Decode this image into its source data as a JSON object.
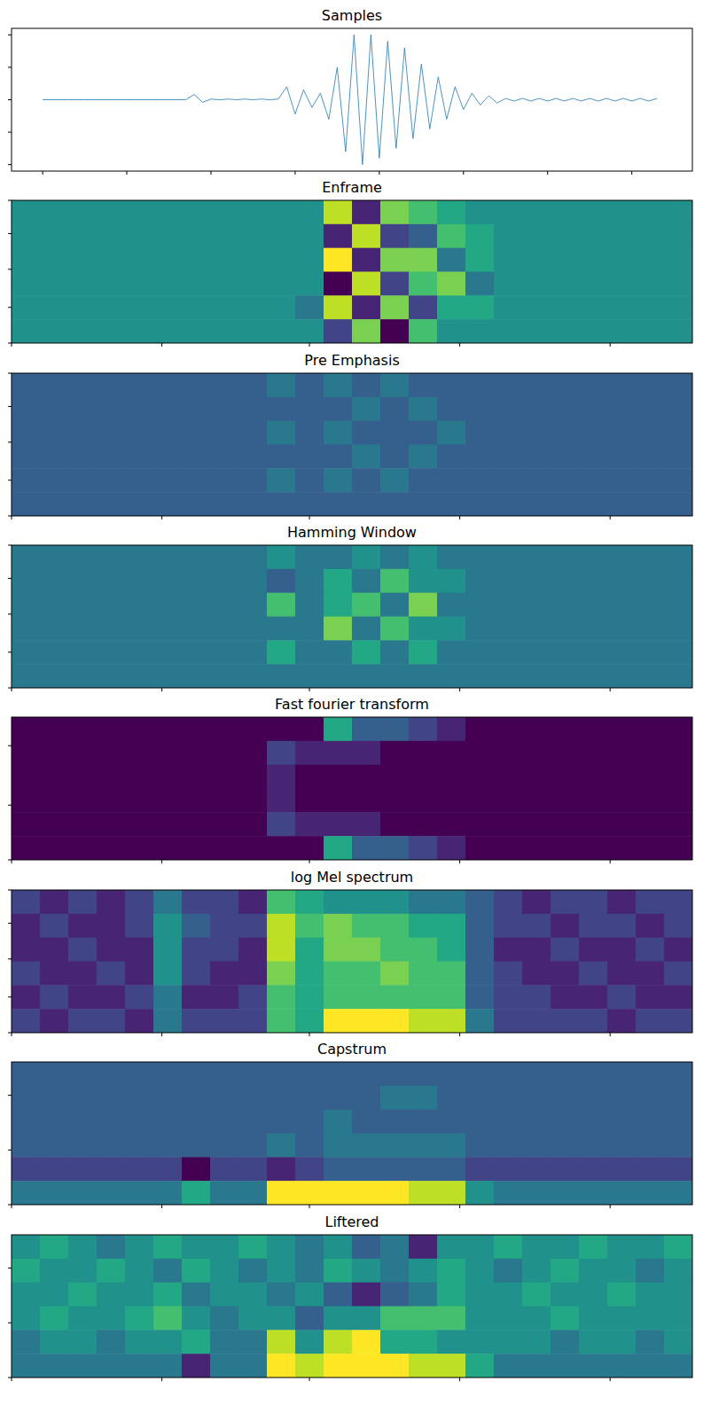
{
  "chart_data": [
    {
      "type": "line",
      "title": "Samples",
      "color": "#1f77b4",
      "tick_labels": false,
      "x": [
        0,
        0.1,
        0.2,
        0.3,
        0.4,
        0.5,
        0.6,
        0.7,
        0.8,
        0.9,
        1,
        1.1,
        1.2,
        1.3,
        1.4,
        1.5,
        1.6,
        1.7,
        1.8,
        1.9,
        2,
        2.1,
        2.2,
        2.3,
        2.4,
        2.5,
        2.6,
        2.7,
        2.8,
        2.9,
        3,
        3.1,
        3.2,
        3.3,
        3.4,
        3.5,
        3.6,
        3.7,
        3.8,
        3.9,
        4,
        4.1,
        4.2,
        4.3,
        4.4,
        4.5,
        4.6,
        4.7,
        4.8,
        4.9,
        5,
        5.1,
        5.2,
        5.3,
        5.4,
        5.5,
        5.6,
        5.7,
        5.8,
        5.9,
        6,
        6.1,
        6.2,
        6.3,
        6.4,
        6.5,
        6.6,
        6.7,
        6.8,
        6.9,
        7,
        7.1,
        7.2,
        7.3
      ],
      "values": [
        0,
        0,
        0,
        0,
        0,
        0,
        0,
        0,
        0,
        0,
        0,
        0,
        0,
        0,
        0,
        0,
        0,
        0,
        0.08,
        -0.04,
        0.01,
        0,
        0.01,
        0,
        0.01,
        0,
        0.01,
        0,
        0.01,
        0.2,
        -0.22,
        0.15,
        -0.12,
        0.1,
        -0.3,
        0.5,
        -0.8,
        1,
        -1,
        1,
        -0.9,
        0.9,
        -0.75,
        0.8,
        -0.6,
        0.55,
        -0.45,
        0.35,
        -0.3,
        0.2,
        -0.15,
        0.1,
        -0.08,
        0.06,
        -0.05,
        0.02,
        -0.02,
        0.02,
        -0.02,
        0.02,
        -0.02,
        0.02,
        -0.02,
        0.02,
        -0.02,
        0.02,
        -0.02,
        0.02,
        -0.02,
        0.02,
        -0.02,
        0.02,
        -0.02,
        0.02
      ],
      "xlim": [
        -0.37,
        7.72
      ],
      "ylim": [
        -1.1,
        1.1
      ],
      "xticks": [
        0,
        1,
        2,
        3,
        4,
        5,
        6,
        7
      ],
      "yticks": [
        -1,
        -0.5,
        0,
        0.5,
        1
      ]
    },
    {
      "type": "heatmap",
      "title": "Enframe",
      "tick_labels": false,
      "xlim": [
        0,
        24
      ],
      "ylim": [
        0,
        6
      ],
      "xticks": [
        0,
        5.3,
        10.5,
        15.8,
        21.1
      ],
      "yticks": [
        0,
        1.4,
        2.9,
        4.5,
        6
      ],
      "color_range": [
        0,
        10
      ],
      "cells": [
        [
          5,
          5,
          5,
          5,
          5,
          5,
          5,
          5,
          5,
          5,
          5,
          9,
          1,
          8,
          7,
          6,
          5,
          5,
          5,
          5,
          5,
          5,
          5,
          5
        ],
        [
          5,
          5,
          5,
          5,
          5,
          5,
          5,
          5,
          5,
          5,
          5,
          1,
          9,
          2,
          3,
          7,
          6,
          5,
          5,
          5,
          5,
          5,
          5,
          5
        ],
        [
          5,
          5,
          5,
          5,
          5,
          5,
          5,
          5,
          5,
          5,
          5,
          10,
          1,
          8,
          8,
          4,
          6,
          5,
          5,
          5,
          5,
          5,
          5,
          5
        ],
        [
          5,
          5,
          5,
          5,
          5,
          5,
          5,
          5,
          5,
          5,
          5,
          0,
          9,
          2,
          7,
          8,
          4,
          5,
          5,
          5,
          5,
          5,
          5,
          5
        ],
        [
          5,
          5,
          5,
          5,
          5,
          5,
          5,
          5,
          5,
          5,
          4,
          9,
          1,
          8,
          2,
          6,
          6,
          5,
          5,
          5,
          5,
          5,
          5,
          5
        ],
        [
          5,
          5,
          5,
          5,
          5,
          5,
          5,
          5,
          5,
          5,
          5,
          2,
          8,
          0,
          7,
          5,
          5,
          5,
          5,
          5,
          5,
          5,
          5,
          5
        ]
      ]
    },
    {
      "type": "heatmap",
      "title": "Pre Emphasis",
      "tick_labels": false,
      "xlim": [
        0,
        24
      ],
      "ylim": [
        0,
        6
      ],
      "xticks": [
        0,
        5.3,
        10.5,
        15.8,
        21.1
      ],
      "yticks": [
        0,
        1.4,
        2.9,
        4.5,
        6
      ],
      "color_range": [
        0,
        10
      ],
      "cells": [
        [
          3,
          3,
          3,
          3,
          3,
          3,
          3,
          3,
          3,
          4,
          3,
          4,
          3,
          4,
          3,
          3,
          3,
          3,
          3,
          3,
          3,
          3,
          3,
          3
        ],
        [
          3,
          3,
          3,
          3,
          3,
          3,
          3,
          3,
          3,
          3,
          3,
          3,
          4,
          3,
          4,
          3,
          3,
          3,
          3,
          3,
          3,
          3,
          3,
          3
        ],
        [
          3,
          3,
          3,
          3,
          3,
          3,
          3,
          3,
          3,
          4,
          3,
          4,
          3,
          3,
          3,
          4,
          3,
          3,
          3,
          3,
          3,
          3,
          3,
          3
        ],
        [
          3,
          3,
          3,
          3,
          3,
          3,
          3,
          3,
          3,
          3,
          3,
          3,
          4,
          3,
          4,
          3,
          3,
          3,
          3,
          3,
          3,
          3,
          3,
          3
        ],
        [
          3,
          3,
          3,
          3,
          3,
          3,
          3,
          3,
          3,
          4,
          3,
          4,
          3,
          4,
          3,
          3,
          3,
          3,
          3,
          3,
          3,
          3,
          3,
          3
        ],
        [
          3,
          3,
          3,
          3,
          3,
          3,
          3,
          3,
          3,
          3,
          3,
          3,
          3,
          3,
          3,
          3,
          3,
          3,
          3,
          3,
          3,
          3,
          3,
          3
        ]
      ]
    },
    {
      "type": "heatmap",
      "title": "Hamming Window",
      "tick_labels": false,
      "xlim": [
        0,
        24
      ],
      "ylim": [
        0,
        6
      ],
      "xticks": [
        0,
        5.3,
        10.5,
        15.8,
        21.1
      ],
      "yticks": [
        0,
        1.4,
        2.9,
        4.5,
        6
      ],
      "color_range": [
        0,
        10
      ],
      "cells": [
        [
          4,
          4,
          4,
          4,
          4,
          4,
          4,
          4,
          4,
          5,
          4,
          4,
          5,
          4,
          5,
          4,
          4,
          4,
          4,
          4,
          4,
          4,
          4,
          4
        ],
        [
          4,
          4,
          4,
          4,
          4,
          4,
          4,
          4,
          4,
          3,
          4,
          6,
          4,
          7,
          5,
          5,
          4,
          4,
          4,
          4,
          4,
          4,
          4,
          4
        ],
        [
          4,
          4,
          4,
          4,
          4,
          4,
          4,
          4,
          4,
          7,
          4,
          6,
          7,
          4,
          8,
          4,
          4,
          4,
          4,
          4,
          4,
          4,
          4,
          4
        ],
        [
          4,
          4,
          4,
          4,
          4,
          4,
          4,
          4,
          4,
          4,
          4,
          8,
          4,
          7,
          5,
          5,
          4,
          4,
          4,
          4,
          4,
          4,
          4,
          4
        ],
        [
          4,
          4,
          4,
          4,
          4,
          4,
          4,
          4,
          4,
          6,
          4,
          4,
          6,
          4,
          6,
          4,
          4,
          4,
          4,
          4,
          4,
          4,
          4,
          4
        ],
        [
          4,
          4,
          4,
          4,
          4,
          4,
          4,
          4,
          4,
          4,
          4,
          4,
          4,
          4,
          4,
          4,
          4,
          4,
          4,
          4,
          4,
          4,
          4,
          4
        ]
      ]
    },
    {
      "type": "heatmap",
      "title": "Fast fourier transform",
      "tick_labels": false,
      "xlim": [
        0,
        24
      ],
      "ylim": [
        0,
        6
      ],
      "xticks": [
        0,
        5.3,
        10.5,
        15.8,
        21.1
      ],
      "yticks": [
        1.2,
        3.7,
        6
      ],
      "color_range": [
        0,
        10
      ],
      "cells": [
        [
          0,
          0,
          0,
          0,
          0,
          0,
          0,
          0,
          0,
          0,
          0,
          6,
          3,
          3,
          2,
          1,
          0,
          0,
          0,
          0,
          0,
          0,
          0,
          0
        ],
        [
          0,
          0,
          0,
          0,
          0,
          0,
          0,
          0,
          0,
          2,
          1,
          1,
          1,
          0,
          0,
          0,
          0,
          0,
          0,
          0,
          0,
          0,
          0,
          0
        ],
        [
          0,
          0,
          0,
          0,
          0,
          0,
          0,
          0,
          0,
          1,
          0,
          0,
          0,
          0,
          0,
          0,
          0,
          0,
          0,
          0,
          0,
          0,
          0,
          0
        ],
        [
          0,
          0,
          0,
          0,
          0,
          0,
          0,
          0,
          0,
          1,
          0,
          0,
          0,
          0,
          0,
          0,
          0,
          0,
          0,
          0,
          0,
          0,
          0,
          0
        ],
        [
          0,
          0,
          0,
          0,
          0,
          0,
          0,
          0,
          0,
          2,
          1,
          1,
          1,
          0,
          0,
          0,
          0,
          0,
          0,
          0,
          0,
          0,
          0,
          0
        ],
        [
          0,
          0,
          0,
          0,
          0,
          0,
          0,
          0,
          0,
          0,
          0,
          6,
          3,
          3,
          2,
          1,
          0,
          0,
          0,
          0,
          0,
          0,
          0,
          0
        ]
      ]
    },
    {
      "type": "heatmap",
      "title": "log Mel spectrum",
      "tick_labels": false,
      "xlim": [
        0,
        24
      ],
      "ylim": [
        0,
        6
      ],
      "xticks": [
        0,
        5.3,
        10.5,
        15.8,
        21.1
      ],
      "yticks": [
        0,
        1.4,
        2.9,
        4.5,
        6
      ],
      "color_range": [
        0,
        10
      ],
      "cells": [
        [
          2,
          1,
          2,
          1,
          2,
          4,
          2,
          2,
          1,
          7,
          6,
          5,
          5,
          5,
          4,
          4,
          3,
          2,
          1,
          2,
          2,
          1,
          2,
          2
        ],
        [
          1,
          2,
          1,
          1,
          2,
          5,
          3,
          2,
          2,
          9,
          7,
          8,
          7,
          7,
          6,
          6,
          3,
          2,
          2,
          1,
          2,
          2,
          1,
          2
        ],
        [
          1,
          1,
          2,
          1,
          1,
          5,
          2,
          2,
          1,
          9,
          6,
          8,
          8,
          7,
          7,
          6,
          3,
          1,
          1,
          2,
          1,
          1,
          2,
          1
        ],
        [
          2,
          1,
          1,
          2,
          1,
          5,
          2,
          1,
          1,
          8,
          6,
          7,
          7,
          8,
          7,
          7,
          3,
          2,
          1,
          1,
          2,
          1,
          1,
          2
        ],
        [
          1,
          2,
          1,
          1,
          2,
          4,
          1,
          1,
          2,
          7,
          6,
          7,
          7,
          7,
          7,
          7,
          3,
          2,
          2,
          1,
          1,
          2,
          1,
          1
        ],
        [
          2,
          1,
          2,
          2,
          1,
          4,
          2,
          2,
          2,
          7,
          6,
          10,
          10,
          10,
          9,
          9,
          4,
          2,
          2,
          2,
          2,
          1,
          2,
          2
        ]
      ]
    },
    {
      "type": "heatmap",
      "title": "Capstrum",
      "tick_labels": false,
      "xlim": [
        0,
        24
      ],
      "ylim": [
        0,
        6
      ],
      "xticks": [
        0,
        5.3,
        10.5,
        15.8,
        21.1
      ],
      "yticks": [
        1.4,
        3.7,
        6
      ],
      "color_range": [
        0,
        10
      ],
      "cells": [
        [
          3,
          3,
          3,
          3,
          3,
          3,
          3,
          3,
          3,
          3,
          3,
          3,
          3,
          3,
          3,
          3,
          3,
          3,
          3,
          3,
          3,
          3,
          3,
          3
        ],
        [
          3,
          3,
          3,
          3,
          3,
          3,
          3,
          3,
          3,
          3,
          3,
          3,
          3,
          4,
          4,
          3,
          3,
          3,
          3,
          3,
          3,
          3,
          3,
          3
        ],
        [
          3,
          3,
          3,
          3,
          3,
          3,
          3,
          3,
          3,
          3,
          3,
          4,
          3,
          3,
          3,
          3,
          3,
          3,
          3,
          3,
          3,
          3,
          3,
          3
        ],
        [
          3,
          3,
          3,
          3,
          3,
          3,
          3,
          3,
          3,
          4,
          3,
          4,
          4,
          4,
          4,
          4,
          3,
          3,
          3,
          3,
          3,
          3,
          3,
          3
        ],
        [
          2,
          2,
          2,
          2,
          2,
          2,
          0,
          2,
          2,
          1,
          2,
          3,
          3,
          3,
          3,
          3,
          2,
          2,
          2,
          2,
          2,
          2,
          2,
          2
        ],
        [
          4,
          4,
          4,
          4,
          4,
          4,
          6,
          4,
          4,
          10,
          10,
          10,
          10,
          10,
          9,
          9,
          5,
          4,
          4,
          4,
          4,
          4,
          4,
          4
        ]
      ]
    },
    {
      "type": "heatmap",
      "title": "Liftered",
      "tick_labels": false,
      "xlim": [
        0,
        24
      ],
      "ylim": [
        0,
        6
      ],
      "xticks": [
        0,
        5.3,
        10.5,
        15.8,
        21.1
      ],
      "yticks": [
        1.4,
        3.7,
        6
      ],
      "color_range": [
        0,
        10
      ],
      "cells": [
        [
          5,
          6,
          5,
          4,
          5,
          6,
          5,
          5,
          6,
          5,
          4,
          5,
          3,
          4,
          1,
          5,
          5,
          6,
          5,
          5,
          6,
          5,
          5,
          6
        ],
        [
          6,
          5,
          5,
          6,
          5,
          4,
          6,
          5,
          4,
          5,
          4,
          6,
          5,
          4,
          5,
          6,
          5,
          4,
          5,
          6,
          5,
          5,
          4,
          5
        ],
        [
          5,
          5,
          6,
          5,
          5,
          6,
          4,
          5,
          5,
          4,
          5,
          3,
          1,
          3,
          4,
          6,
          5,
          5,
          6,
          5,
          5,
          6,
          5,
          5
        ],
        [
          5,
          6,
          5,
          5,
          6,
          7,
          5,
          4,
          5,
          5,
          3,
          5,
          5,
          7,
          7,
          7,
          5,
          5,
          5,
          6,
          5,
          5,
          5,
          5
        ],
        [
          4,
          5,
          5,
          4,
          5,
          5,
          6,
          4,
          4,
          9,
          5,
          9,
          10,
          6,
          6,
          5,
          5,
          5,
          5,
          4,
          5,
          5,
          4,
          5
        ],
        [
          4,
          4,
          4,
          4,
          4,
          4,
          1,
          4,
          4,
          10,
          9,
          10,
          10,
          10,
          9,
          9,
          6,
          4,
          4,
          4,
          4,
          4,
          4,
          4
        ]
      ]
    }
  ]
}
